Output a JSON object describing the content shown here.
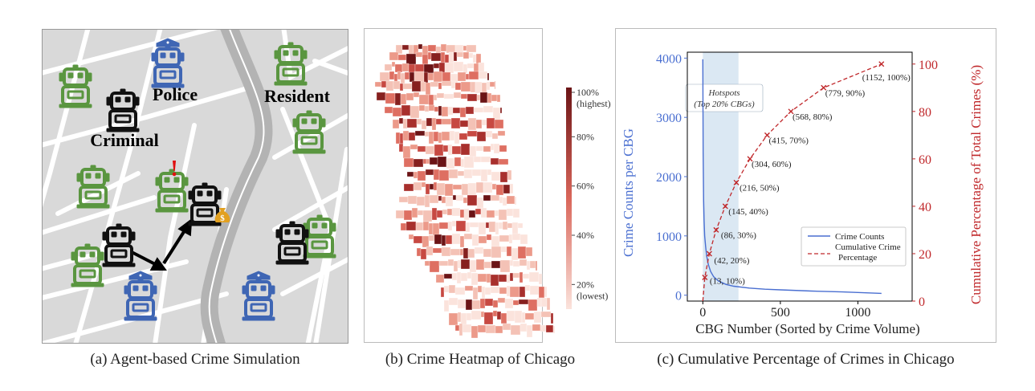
{
  "panel_a": {
    "labels": {
      "police": "Police",
      "resident": "Resident",
      "criminal": "Criminal"
    },
    "alert_mark": "!",
    "money_mark": "$",
    "caption": "(a) Agent-based Crime Simulation",
    "colors": {
      "police": "#3f66b4",
      "resident": "#5a9640",
      "criminal": "#111111",
      "map_bg": "#d9d9d9",
      "road": "#ffffff",
      "highway": "#b3b3b3"
    },
    "icons": [
      "police-robot-icon",
      "resident-robot-icon",
      "criminal-robot-icon",
      "money-bag-icon",
      "exclamation-icon"
    ]
  },
  "panel_b": {
    "colorbar_ticks": [
      "100%\n(highest)",
      "80%",
      "60%",
      "40%",
      "20%\n(lowest)"
    ],
    "colorbar_tick_values": [
      100,
      80,
      60,
      40,
      20
    ],
    "color_low": "#fbe3dc",
    "color_high": "#6b1416",
    "caption": "(b) Crime Heatmap of Chicago"
  },
  "chart_data": {
    "type": "line",
    "title": "",
    "xlabel": "CBG Number (Sorted by Crime Volume)",
    "ylabel": "Crime Counts per CBG",
    "y2label": "Cumulative Percentage of Total Crimes (%)",
    "xlim": [
      -100,
      1350
    ],
    "ylim": [
      -100,
      4100
    ],
    "y2lim": [
      0,
      105
    ],
    "xticks": [
      0,
      500,
      1000
    ],
    "yticks": [
      0,
      1000,
      2000,
      3000,
      4000
    ],
    "y2ticks": [
      0,
      20,
      40,
      60,
      80,
      100
    ],
    "hotspot_band": {
      "x": [
        0,
        230
      ],
      "label_line1": "Hotspots",
      "label_line2": "(Top 20% CBGs)"
    },
    "series": [
      {
        "name": "Crime Counts",
        "axis": "left",
        "color": "#4a6fd1",
        "style": "solid",
        "x": [
          0,
          2,
          5,
          8,
          12,
          18,
          25,
          35,
          50,
          70,
          100,
          150,
          200,
          300,
          400,
          500,
          700,
          900,
          1152
        ],
        "y": [
          3980,
          2400,
          1600,
          1250,
          1000,
          820,
          660,
          520,
          400,
          310,
          240,
          180,
          150,
          120,
          100,
          90,
          70,
          55,
          30
        ]
      },
      {
        "name": "Cumulative Crime Percentage",
        "axis": "right",
        "color": "#c0282b",
        "style": "dashed",
        "x": [
          0,
          13,
          42,
          86,
          145,
          216,
          304,
          415,
          568,
          779,
          1152
        ],
        "y": [
          0,
          10,
          20,
          30,
          40,
          50,
          60,
          70,
          80,
          90,
          100
        ]
      }
    ],
    "point_labels": [
      "(13, 10%)",
      "(42, 20%)",
      "(86, 30%)",
      "(145, 40%)",
      "(216, 50%)",
      "(304, 60%)",
      "(415, 70%)",
      "(568, 80%)",
      "(779, 90%)",
      "(1152, 100%)"
    ],
    "legend": {
      "placement": "lower-right",
      "entries": [
        "Crime Counts",
        "Cumulative Crime\nPercentage"
      ]
    },
    "caption": "(c) Cumulative Percentage of Crimes in Chicago",
    "grid": false
  }
}
